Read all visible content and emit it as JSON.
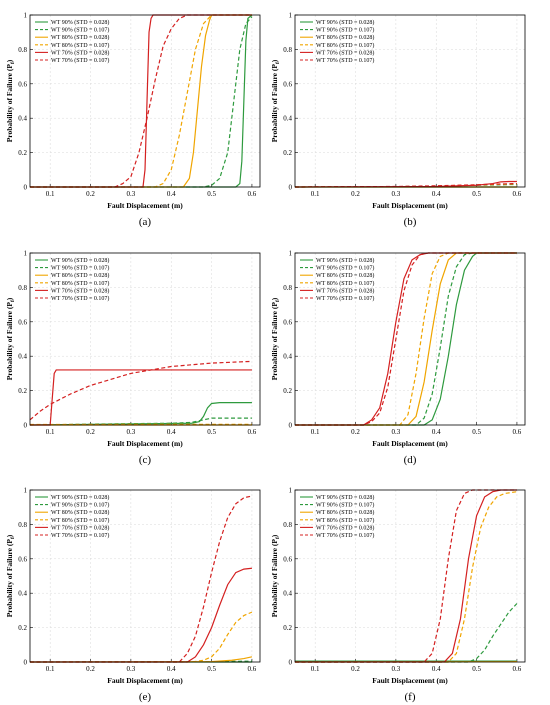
{
  "colors": {
    "WT 90%": "#2e9a3e",
    "WT 80%": "#f0a500",
    "WT 70%": "#d42020"
  },
  "chart_data": [
    {
      "type": "line",
      "panel_label": "(a)",
      "xlabel": "Fault Displacement (m)",
      "ylabel_main": "Probability of Failure (P",
      "ylabel_sub": "f",
      "ylabel_end": ")",
      "xlim": [
        0.05,
        0.62
      ],
      "ylim": [
        0,
        1
      ],
      "xticks": [
        "0.1",
        "0.2",
        "0.3",
        "0.4",
        "0.5",
        "0.6"
      ],
      "yticks": [
        "0",
        "0.2",
        "0.4",
        "0.6",
        "0.8",
        "1"
      ],
      "legend_position": "top-left",
      "series": [
        {
          "name": "WT 90% (STD = 0.028)",
          "color": "#2e9a3e",
          "dash": false,
          "x": [
            0.05,
            0.56,
            0.57,
            0.575,
            0.58,
            0.585,
            0.59,
            0.6
          ],
          "y": [
            0,
            0,
            0.02,
            0.15,
            0.5,
            0.85,
            0.98,
            1
          ]
        },
        {
          "name": "WT 90% (STD = 0.107)",
          "color": "#2e9a3e",
          "dash": true,
          "x": [
            0.05,
            0.48,
            0.5,
            0.52,
            0.54,
            0.555,
            0.57,
            0.585,
            0.6
          ],
          "y": [
            0,
            0,
            0.01,
            0.05,
            0.2,
            0.5,
            0.8,
            0.95,
            0.99
          ]
        },
        {
          "name": "WT 80% (STD = 0.028)",
          "color": "#f0a500",
          "dash": false,
          "x": [
            0.05,
            0.43,
            0.445,
            0.455,
            0.465,
            0.475,
            0.485,
            0.495,
            0.5,
            0.6
          ],
          "y": [
            0,
            0,
            0.05,
            0.2,
            0.45,
            0.7,
            0.88,
            0.97,
            1,
            1
          ]
        },
        {
          "name": "WT 80% (STD = 0.107)",
          "color": "#f0a500",
          "dash": true,
          "x": [
            0.05,
            0.36,
            0.38,
            0.4,
            0.42,
            0.44,
            0.46,
            0.48,
            0.5,
            0.6
          ],
          "y": [
            0,
            0,
            0.02,
            0.1,
            0.3,
            0.55,
            0.8,
            0.95,
            1,
            1
          ]
        },
        {
          "name": "WT 70% (STD = 0.028)",
          "color": "#d42020",
          "dash": false,
          "x": [
            0.05,
            0.33,
            0.335,
            0.34,
            0.345,
            0.35,
            0.355,
            0.6
          ],
          "y": [
            0,
            0,
            0.1,
            0.5,
            0.9,
            0.98,
            1,
            1
          ]
        },
        {
          "name": "WT 70% (STD = 0.107)",
          "color": "#d42020",
          "dash": true,
          "x": [
            0.05,
            0.26,
            0.28,
            0.3,
            0.32,
            0.34,
            0.36,
            0.38,
            0.4,
            0.42,
            0.44,
            0.6
          ],
          "y": [
            0,
            0,
            0.02,
            0.06,
            0.2,
            0.4,
            0.62,
            0.82,
            0.92,
            0.98,
            1,
            1
          ]
        }
      ]
    },
    {
      "type": "line",
      "panel_label": "(b)",
      "xlabel": "Fault Displacement (m)",
      "ylabel_main": "Probability of Failure (P",
      "ylabel_sub": "f",
      "ylabel_end": ")",
      "xlim": [
        0.05,
        0.62
      ],
      "ylim": [
        0,
        1
      ],
      "xticks": [
        "0.1",
        "0.2",
        "0.3",
        "0.4",
        "0.5",
        "0.6"
      ],
      "yticks": [
        "0",
        "0.2",
        "0.4",
        "0.6",
        "0.8",
        "1"
      ],
      "legend_position": "top-left",
      "series": [
        {
          "name": "WT 90% (STD = 0.028)",
          "color": "#2e9a3e",
          "dash": false,
          "x": [
            0.05,
            0.6
          ],
          "y": [
            0,
            0
          ]
        },
        {
          "name": "WT 90% (STD = 0.107)",
          "color": "#2e9a3e",
          "dash": true,
          "x": [
            0.05,
            0.3,
            0.4,
            0.5,
            0.6
          ],
          "y": [
            0,
            0.002,
            0.005,
            0.01,
            0.015
          ]
        },
        {
          "name": "WT 80% (STD = 0.028)",
          "color": "#f0a500",
          "dash": false,
          "x": [
            0.05,
            0.6
          ],
          "y": [
            0,
            0
          ]
        },
        {
          "name": "WT 80% (STD = 0.107)",
          "color": "#f0a500",
          "dash": true,
          "x": [
            0.05,
            0.3,
            0.4,
            0.5,
            0.6
          ],
          "y": [
            0,
            0.002,
            0.006,
            0.012,
            0.018
          ]
        },
        {
          "name": "WT 70% (STD = 0.028)",
          "color": "#d42020",
          "dash": false,
          "x": [
            0.05,
            0.4,
            0.5,
            0.54,
            0.56,
            0.58,
            0.6
          ],
          "y": [
            0,
            0.003,
            0.01,
            0.02,
            0.03,
            0.032,
            0.032
          ]
        },
        {
          "name": "WT 70% (STD = 0.107)",
          "color": "#d42020",
          "dash": true,
          "x": [
            0.05,
            0.3,
            0.4,
            0.5,
            0.55,
            0.6
          ],
          "y": [
            0,
            0.003,
            0.007,
            0.013,
            0.017,
            0.02
          ]
        }
      ]
    },
    {
      "type": "line",
      "panel_label": "(c)",
      "xlabel": "Fault Displacement (m)",
      "ylabel_main": "Probability of Failure (P",
      "ylabel_sub": "f",
      "ylabel_end": ")",
      "xlim": [
        0.05,
        0.62
      ],
      "ylim": [
        0,
        1
      ],
      "xticks": [
        "0.1",
        "0.2",
        "0.3",
        "0.4",
        "0.5",
        "0.6"
      ],
      "yticks": [
        "0",
        "0.2",
        "0.4",
        "0.6",
        "0.8",
        "1"
      ],
      "legend_position": "top-left",
      "series": [
        {
          "name": "WT 90% (STD = 0.028)",
          "color": "#2e9a3e",
          "dash": false,
          "x": [
            0.05,
            0.45,
            0.47,
            0.48,
            0.49,
            0.5,
            0.52,
            0.6
          ],
          "y": [
            0,
            0.01,
            0.02,
            0.05,
            0.1,
            0.125,
            0.13,
            0.13
          ]
        },
        {
          "name": "WT 90% (STD = 0.107)",
          "color": "#2e9a3e",
          "dash": true,
          "x": [
            0.05,
            0.2,
            0.3,
            0.4,
            0.45,
            0.48,
            0.5,
            0.6
          ],
          "y": [
            0,
            0.005,
            0.008,
            0.01,
            0.015,
            0.03,
            0.04,
            0.04
          ]
        },
        {
          "name": "WT 80% (STD = 0.028)",
          "color": "#f0a500",
          "dash": false,
          "x": [
            0.05,
            0.6
          ],
          "y": [
            0,
            0
          ]
        },
        {
          "name": "WT 80% (STD = 0.107)",
          "color": "#f0a500",
          "dash": true,
          "x": [
            0.05,
            0.6
          ],
          "y": [
            0.003,
            0.004
          ]
        },
        {
          "name": "WT 70% (STD = 0.028)",
          "color": "#d42020",
          "dash": false,
          "x": [
            0.05,
            0.1,
            0.105,
            0.11,
            0.115,
            0.6
          ],
          "y": [
            0,
            0,
            0.15,
            0.3,
            0.32,
            0.32
          ]
        },
        {
          "name": "WT 70% (STD = 0.107)",
          "color": "#d42020",
          "dash": true,
          "x": [
            0.05,
            0.075,
            0.1,
            0.15,
            0.2,
            0.3,
            0.4,
            0.5,
            0.6
          ],
          "y": [
            0.03,
            0.08,
            0.12,
            0.18,
            0.23,
            0.3,
            0.34,
            0.36,
            0.37
          ]
        }
      ]
    },
    {
      "type": "line",
      "panel_label": "(d)",
      "xlabel": "Fault Displacement (m)",
      "ylabel_main": "Probability of Failure (P",
      "ylabel_sub": "f",
      "ylabel_end": ")",
      "xlim": [
        0.05,
        0.62
      ],
      "ylim": [
        0,
        1
      ],
      "xticks": [
        "0.1",
        "0.2",
        "0.3",
        "0.4",
        "0.5",
        "0.6"
      ],
      "yticks": [
        "0",
        "0.2",
        "0.4",
        "0.6",
        "0.8",
        "1"
      ],
      "legend_position": "top-left",
      "series": [
        {
          "name": "WT 90% (STD = 0.028)",
          "color": "#2e9a3e",
          "dash": false,
          "x": [
            0.05,
            0.37,
            0.39,
            0.41,
            0.43,
            0.45,
            0.47,
            0.49,
            0.5,
            0.6
          ],
          "y": [
            0,
            0,
            0.03,
            0.15,
            0.4,
            0.7,
            0.9,
            0.98,
            1,
            1
          ]
        },
        {
          "name": "WT 90% (STD = 0.107)",
          "color": "#2e9a3e",
          "dash": true,
          "x": [
            0.05,
            0.35,
            0.37,
            0.39,
            0.41,
            0.43,
            0.45,
            0.47,
            0.49,
            0.6
          ],
          "y": [
            0,
            0,
            0.04,
            0.18,
            0.45,
            0.75,
            0.92,
            0.99,
            1,
            1
          ]
        },
        {
          "name": "WT 80% (STD = 0.028)",
          "color": "#f0a500",
          "dash": false,
          "x": [
            0.05,
            0.33,
            0.35,
            0.37,
            0.39,
            0.41,
            0.43,
            0.45,
            0.6
          ],
          "y": [
            0,
            0,
            0.05,
            0.25,
            0.55,
            0.82,
            0.96,
            1,
            1
          ]
        },
        {
          "name": "WT 80% (STD = 0.107)",
          "color": "#f0a500",
          "dash": true,
          "x": [
            0.05,
            0.31,
            0.33,
            0.35,
            0.37,
            0.39,
            0.41,
            0.43,
            0.6
          ],
          "y": [
            0,
            0,
            0.06,
            0.3,
            0.62,
            0.88,
            0.98,
            1,
            1
          ]
        },
        {
          "name": "WT 70% (STD = 0.028)",
          "color": "#d42020",
          "dash": false,
          "x": [
            0.05,
            0.22,
            0.24,
            0.26,
            0.28,
            0.3,
            0.32,
            0.34,
            0.36,
            0.38,
            0.6
          ],
          "y": [
            0,
            0,
            0.03,
            0.1,
            0.3,
            0.6,
            0.85,
            0.96,
            0.99,
            1,
            1
          ]
        },
        {
          "name": "WT 70% (STD = 0.107)",
          "color": "#d42020",
          "dash": true,
          "x": [
            0.05,
            0.22,
            0.24,
            0.26,
            0.28,
            0.3,
            0.32,
            0.34,
            0.36,
            0.38,
            0.6
          ],
          "y": [
            0,
            0,
            0.02,
            0.07,
            0.22,
            0.5,
            0.78,
            0.93,
            0.99,
            1,
            1
          ]
        }
      ]
    },
    {
      "type": "line",
      "panel_label": "(e)",
      "xlabel": "Fault Displacement (m)",
      "ylabel_main": "Probability of Failure (P",
      "ylabel_sub": "f",
      "ylabel_end": ")",
      "xlim": [
        0.05,
        0.62
      ],
      "ylim": [
        0,
        1
      ],
      "xticks": [
        "0.1",
        "0.2",
        "0.3",
        "0.4",
        "0.5",
        "0.6"
      ],
      "yticks": [
        "0",
        "0.2",
        "0.4",
        "0.6",
        "0.8",
        "1"
      ],
      "legend_position": "top-left",
      "series": [
        {
          "name": "WT 90% (STD = 0.028)",
          "color": "#2e9a3e",
          "dash": false,
          "x": [
            0.05,
            0.6
          ],
          "y": [
            0,
            0
          ]
        },
        {
          "name": "WT 90% (STD = 0.107)",
          "color": "#2e9a3e",
          "dash": true,
          "x": [
            0.05,
            0.5,
            0.6
          ],
          "y": [
            0,
            0.002,
            0.005
          ]
        },
        {
          "name": "WT 80% (STD = 0.028)",
          "color": "#f0a500",
          "dash": false,
          "x": [
            0.05,
            0.5,
            0.55,
            0.58,
            0.6
          ],
          "y": [
            0,
            0.002,
            0.01,
            0.02,
            0.03
          ]
        },
        {
          "name": "WT 80% (STD = 0.107)",
          "color": "#f0a500",
          "dash": true,
          "x": [
            0.05,
            0.45,
            0.48,
            0.5,
            0.52,
            0.54,
            0.56,
            0.58,
            0.6
          ],
          "y": [
            0,
            0,
            0.01,
            0.03,
            0.08,
            0.16,
            0.23,
            0.27,
            0.29
          ]
        },
        {
          "name": "WT 70% (STD = 0.028)",
          "color": "#d42020",
          "dash": false,
          "x": [
            0.05,
            0.44,
            0.46,
            0.48,
            0.5,
            0.52,
            0.54,
            0.56,
            0.58,
            0.6
          ],
          "y": [
            0,
            0,
            0.03,
            0.1,
            0.2,
            0.33,
            0.45,
            0.52,
            0.54,
            0.545
          ]
        },
        {
          "name": "WT 70% (STD = 0.107)",
          "color": "#d42020",
          "dash": true,
          "x": [
            0.05,
            0.42,
            0.44,
            0.46,
            0.48,
            0.5,
            0.52,
            0.54,
            0.56,
            0.58,
            0.6
          ],
          "y": [
            0,
            0,
            0.05,
            0.15,
            0.32,
            0.52,
            0.7,
            0.84,
            0.92,
            0.955,
            0.965
          ]
        }
      ]
    },
    {
      "type": "line",
      "panel_label": "(f)",
      "xlabel": "Fault Displacement (m)",
      "ylabel_main": "Probability of Failure (P",
      "ylabel_sub": "f",
      "ylabel_end": ")",
      "xlim": [
        0.05,
        0.62
      ],
      "ylim": [
        0,
        1
      ],
      "xticks": [
        "0.1",
        "0.2",
        "0.3",
        "0.4",
        "0.5",
        "0.6"
      ],
      "yticks": [
        "0",
        "0.2",
        "0.4",
        "0.6",
        "0.8",
        "1"
      ],
      "legend_position": "top-left",
      "series": [
        {
          "name": "WT 90% (STD = 0.028)",
          "color": "#2e9a3e",
          "dash": false,
          "x": [
            0.05,
            0.6
          ],
          "y": [
            0.005,
            0.005
          ]
        },
        {
          "name": "WT 90% (STD = 0.107)",
          "color": "#2e9a3e",
          "dash": true,
          "x": [
            0.05,
            0.48,
            0.5,
            0.52,
            0.54,
            0.56,
            0.58,
            0.6
          ],
          "y": [
            0,
            0,
            0.02,
            0.07,
            0.15,
            0.22,
            0.29,
            0.34
          ]
        },
        {
          "name": "WT 80% (STD = 0.028)",
          "color": "#f0a500",
          "dash": false,
          "x": [
            0.05,
            0.6
          ],
          "y": [
            0,
            0.002
          ]
        },
        {
          "name": "WT 80% (STD = 0.107)",
          "color": "#f0a500",
          "dash": true,
          "x": [
            0.05,
            0.43,
            0.45,
            0.47,
            0.49,
            0.51,
            0.53,
            0.55,
            0.57,
            0.6
          ],
          "y": [
            0,
            0,
            0.05,
            0.25,
            0.55,
            0.78,
            0.9,
            0.96,
            0.98,
            0.99
          ]
        },
        {
          "name": "WT 70% (STD = 0.028)",
          "color": "#d42020",
          "dash": false,
          "x": [
            0.05,
            0.42,
            0.44,
            0.46,
            0.48,
            0.5,
            0.52,
            0.54,
            0.56,
            0.6
          ],
          "y": [
            0,
            0,
            0.05,
            0.25,
            0.6,
            0.85,
            0.96,
            0.99,
            1,
            1
          ]
        },
        {
          "name": "WT 70% (STD = 0.107)",
          "color": "#d42020",
          "dash": true,
          "x": [
            0.05,
            0.37,
            0.39,
            0.41,
            0.43,
            0.45,
            0.47,
            0.49,
            0.6
          ],
          "y": [
            0,
            0,
            0.05,
            0.25,
            0.6,
            0.88,
            0.98,
            1,
            1
          ]
        }
      ]
    }
  ]
}
